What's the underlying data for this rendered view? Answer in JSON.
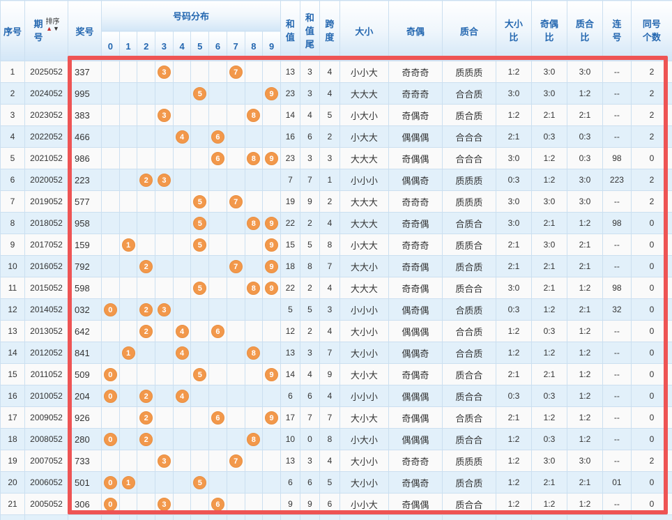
{
  "table": {
    "headers": {
      "seq": "序号",
      "period": "期号",
      "sort_label": "排序",
      "sort_up_icon": "▲",
      "sort_down_icon": "▼",
      "number": "奖号",
      "distribution": "号码分布",
      "digits": [
        "0",
        "1",
        "2",
        "3",
        "4",
        "5",
        "6",
        "7",
        "8",
        "9"
      ],
      "sum": "和值",
      "sum_tail": "和值尾",
      "span": "跨度",
      "size": "大小",
      "parity": "奇偶",
      "prime": "质合",
      "size_ratio": "大小比",
      "parity_ratio": "奇偶比",
      "prime_ratio": "质合比",
      "consecutive": "连号",
      "same_count": "同号个数"
    },
    "rows": [
      {
        "seq": "1",
        "period": "2025052",
        "number": "337",
        "balls": [
          3,
          7
        ],
        "sum": "13",
        "tail": "3",
        "span": "4",
        "size": "小小大",
        "parity": "奇奇奇",
        "prime": "质质质",
        "size_ratio": "1:2",
        "parity_ratio": "3:0",
        "prime_ratio": "3:0",
        "consecutive": "--",
        "same_count": "2"
      },
      {
        "seq": "2",
        "period": "2024052",
        "number": "995",
        "balls": [
          5,
          9
        ],
        "sum": "23",
        "tail": "3",
        "span": "4",
        "size": "大大大",
        "parity": "奇奇奇",
        "prime": "合合质",
        "size_ratio": "3:0",
        "parity_ratio": "3:0",
        "prime_ratio": "1:2",
        "consecutive": "--",
        "same_count": "2"
      },
      {
        "seq": "3",
        "period": "2023052",
        "number": "383",
        "balls": [
          3,
          8
        ],
        "sum": "14",
        "tail": "4",
        "span": "5",
        "size": "小大小",
        "parity": "奇偶奇",
        "prime": "质合质",
        "size_ratio": "1:2",
        "parity_ratio": "2:1",
        "prime_ratio": "2:1",
        "consecutive": "--",
        "same_count": "2"
      },
      {
        "seq": "4",
        "period": "2022052",
        "number": "466",
        "balls": [
          4,
          6
        ],
        "sum": "16",
        "tail": "6",
        "span": "2",
        "size": "小大大",
        "parity": "偶偶偶",
        "prime": "合合合",
        "size_ratio": "2:1",
        "parity_ratio": "0:3",
        "prime_ratio": "0:3",
        "consecutive": "--",
        "same_count": "2"
      },
      {
        "seq": "5",
        "period": "2021052",
        "number": "986",
        "balls": [
          6,
          8,
          9
        ],
        "sum": "23",
        "tail": "3",
        "span": "3",
        "size": "大大大",
        "parity": "奇偶偶",
        "prime": "合合合",
        "size_ratio": "3:0",
        "parity_ratio": "1:2",
        "prime_ratio": "0:3",
        "consecutive": "98",
        "same_count": "0"
      },
      {
        "seq": "6",
        "period": "2020052",
        "number": "223",
        "balls": [
          2,
          3
        ],
        "sum": "7",
        "tail": "7",
        "span": "1",
        "size": "小小小",
        "parity": "偶偶奇",
        "prime": "质质质",
        "size_ratio": "0:3",
        "parity_ratio": "1:2",
        "prime_ratio": "3:0",
        "consecutive": "223",
        "same_count": "2"
      },
      {
        "seq": "7",
        "period": "2019052",
        "number": "577",
        "balls": [
          5,
          7
        ],
        "sum": "19",
        "tail": "9",
        "span": "2",
        "size": "大大大",
        "parity": "奇奇奇",
        "prime": "质质质",
        "size_ratio": "3:0",
        "parity_ratio": "3:0",
        "prime_ratio": "3:0",
        "consecutive": "--",
        "same_count": "2"
      },
      {
        "seq": "8",
        "period": "2018052",
        "number": "958",
        "balls": [
          5,
          8,
          9
        ],
        "sum": "22",
        "tail": "2",
        "span": "4",
        "size": "大大大",
        "parity": "奇奇偶",
        "prime": "合质合",
        "size_ratio": "3:0",
        "parity_ratio": "2:1",
        "prime_ratio": "1:2",
        "consecutive": "98",
        "same_count": "0"
      },
      {
        "seq": "9",
        "period": "2017052",
        "number": "159",
        "balls": [
          1,
          5,
          9
        ],
        "sum": "15",
        "tail": "5",
        "span": "8",
        "size": "小大大",
        "parity": "奇奇奇",
        "prime": "质质合",
        "size_ratio": "2:1",
        "parity_ratio": "3:0",
        "prime_ratio": "2:1",
        "consecutive": "--",
        "same_count": "0"
      },
      {
        "seq": "10",
        "period": "2016052",
        "number": "792",
        "balls": [
          2,
          7,
          9
        ],
        "sum": "18",
        "tail": "8",
        "span": "7",
        "size": "大大小",
        "parity": "奇奇偶",
        "prime": "质合质",
        "size_ratio": "2:1",
        "parity_ratio": "2:1",
        "prime_ratio": "2:1",
        "consecutive": "--",
        "same_count": "0"
      },
      {
        "seq": "11",
        "period": "2015052",
        "number": "598",
        "balls": [
          5,
          8,
          9
        ],
        "sum": "22",
        "tail": "2",
        "span": "4",
        "size": "大大大",
        "parity": "奇奇偶",
        "prime": "质合合",
        "size_ratio": "3:0",
        "parity_ratio": "2:1",
        "prime_ratio": "1:2",
        "consecutive": "98",
        "same_count": "0"
      },
      {
        "seq": "12",
        "period": "2014052",
        "number": "032",
        "balls": [
          0,
          2,
          3
        ],
        "sum": "5",
        "tail": "5",
        "span": "3",
        "size": "小小小",
        "parity": "偶奇偶",
        "prime": "合质质",
        "size_ratio": "0:3",
        "parity_ratio": "1:2",
        "prime_ratio": "2:1",
        "consecutive": "32",
        "same_count": "0"
      },
      {
        "seq": "13",
        "period": "2013052",
        "number": "642",
        "balls": [
          2,
          4,
          6
        ],
        "sum": "12",
        "tail": "2",
        "span": "4",
        "size": "大小小",
        "parity": "偶偶偶",
        "prime": "合合质",
        "size_ratio": "1:2",
        "parity_ratio": "0:3",
        "prime_ratio": "1:2",
        "consecutive": "--",
        "same_count": "0"
      },
      {
        "seq": "14",
        "period": "2012052",
        "number": "841",
        "balls": [
          1,
          4,
          8
        ],
        "sum": "13",
        "tail": "3",
        "span": "7",
        "size": "大小小",
        "parity": "偶偶奇",
        "prime": "合合质",
        "size_ratio": "1:2",
        "parity_ratio": "1:2",
        "prime_ratio": "1:2",
        "consecutive": "--",
        "same_count": "0"
      },
      {
        "seq": "15",
        "period": "2011052",
        "number": "509",
        "balls": [
          0,
          5,
          9
        ],
        "sum": "14",
        "tail": "4",
        "span": "9",
        "size": "大小大",
        "parity": "奇偶奇",
        "prime": "质合合",
        "size_ratio": "2:1",
        "parity_ratio": "2:1",
        "prime_ratio": "1:2",
        "consecutive": "--",
        "same_count": "0"
      },
      {
        "seq": "16",
        "period": "2010052",
        "number": "204",
        "balls": [
          0,
          2,
          4
        ],
        "sum": "6",
        "tail": "6",
        "span": "4",
        "size": "小小小",
        "parity": "偶偶偶",
        "prime": "质合合",
        "size_ratio": "0:3",
        "parity_ratio": "0:3",
        "prime_ratio": "1:2",
        "consecutive": "--",
        "same_count": "0"
      },
      {
        "seq": "17",
        "period": "2009052",
        "number": "926",
        "balls": [
          2,
          6,
          9
        ],
        "sum": "17",
        "tail": "7",
        "span": "7",
        "size": "大小大",
        "parity": "奇偶偶",
        "prime": "合质合",
        "size_ratio": "2:1",
        "parity_ratio": "1:2",
        "prime_ratio": "1:2",
        "consecutive": "--",
        "same_count": "0"
      },
      {
        "seq": "18",
        "period": "2008052",
        "number": "280",
        "balls": [
          0,
          2,
          8
        ],
        "sum": "10",
        "tail": "0",
        "span": "8",
        "size": "小大小",
        "parity": "偶偶偶",
        "prime": "质合合",
        "size_ratio": "1:2",
        "parity_ratio": "0:3",
        "prime_ratio": "1:2",
        "consecutive": "--",
        "same_count": "0"
      },
      {
        "seq": "19",
        "period": "2007052",
        "number": "733",
        "balls": [
          3,
          7
        ],
        "sum": "13",
        "tail": "3",
        "span": "4",
        "size": "大小小",
        "parity": "奇奇奇",
        "prime": "质质质",
        "size_ratio": "1:2",
        "parity_ratio": "3:0",
        "prime_ratio": "3:0",
        "consecutive": "--",
        "same_count": "2"
      },
      {
        "seq": "20",
        "period": "2006052",
        "number": "501",
        "balls": [
          0,
          1,
          5
        ],
        "sum": "6",
        "tail": "6",
        "span": "5",
        "size": "大小小",
        "parity": "奇偶奇",
        "prime": "质合质",
        "size_ratio": "1:2",
        "parity_ratio": "2:1",
        "prime_ratio": "2:1",
        "consecutive": "01",
        "same_count": "0"
      },
      {
        "seq": "21",
        "period": "2005052",
        "number": "306",
        "balls": [
          0,
          3,
          6
        ],
        "sum": "9",
        "tail": "9",
        "span": "6",
        "size": "小小大",
        "parity": "奇偶偶",
        "prime": "质合合",
        "size_ratio": "1:2",
        "parity_ratio": "1:2",
        "prime_ratio": "1:2",
        "consecutive": "--",
        "same_count": "0"
      }
    ]
  },
  "colors": {
    "ball": "#F2984B",
    "ball_border": "#E98E3F",
    "highlight_frame": "#EE5454",
    "header_text": "#2467B0",
    "row_odd_bg": "#FAFAFA",
    "row_even_bg": "#E2F0FA",
    "ball_area_bg": "#FFFDE3",
    "grid_line": "#CBDFF0",
    "sort_up": "#C42B2B",
    "sort_down": "#333333"
  }
}
